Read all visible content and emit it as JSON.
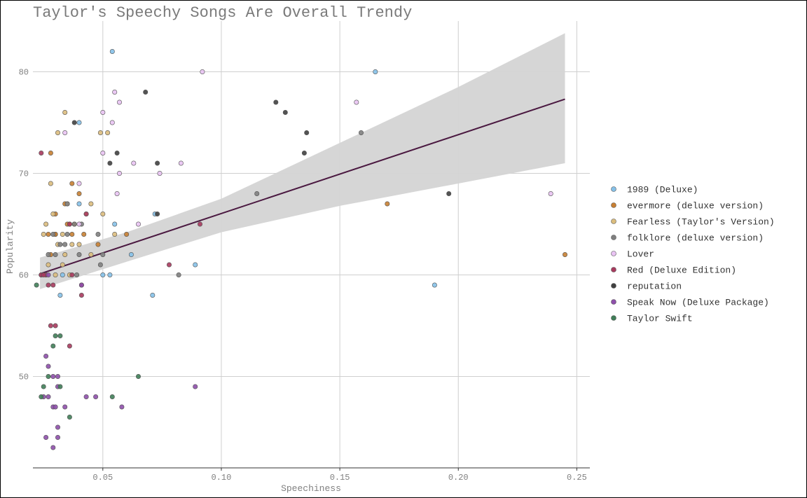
{
  "chart_data": {
    "type": "scatter",
    "title": "Taylor's Speechy Songs Are Overall Trendy",
    "xlabel": "Speechiness",
    "ylabel": "Popularity",
    "xlim": [
      0.0205,
      0.2555
    ],
    "ylim": [
      41,
      85
    ],
    "xticks": [
      0.05,
      0.1,
      0.15,
      0.2,
      0.25
    ],
    "xtick_labels": [
      "0.05",
      "0.10",
      "0.15",
      "0.20",
      "0.25"
    ],
    "yticks": [
      50,
      60,
      70,
      80
    ],
    "ytick_labels": [
      "50",
      "60",
      "70",
      "80"
    ],
    "grid": true,
    "legend_position": "right",
    "trend": {
      "line": [
        [
          0.0235,
          60.1
        ],
        [
          0.245,
          77.3
        ]
      ],
      "band_upper": [
        [
          0.0235,
          61.7
        ],
        [
          0.06,
          64.2
        ],
        [
          0.1,
          67.5
        ],
        [
          0.15,
          73.0
        ],
        [
          0.2,
          78.5
        ],
        [
          0.245,
          83.8
        ]
      ],
      "band_lower": [
        [
          0.0235,
          58.6
        ],
        [
          0.06,
          61.3
        ],
        [
          0.1,
          64.2
        ],
        [
          0.15,
          66.8
        ],
        [
          0.2,
          69.0
        ],
        [
          0.245,
          71.0
        ]
      ],
      "line_color": "#4a1840",
      "band_color": "#d4d4d4"
    },
    "series": [
      {
        "name": "1989 (Deluxe)",
        "color": "#85c1e9",
        "points": [
          [
            0.054,
            82
          ],
          [
            0.165,
            80
          ],
          [
            0.04,
            75
          ],
          [
            0.072,
            66
          ],
          [
            0.055,
            65
          ],
          [
            0.062,
            62
          ],
          [
            0.089,
            61
          ],
          [
            0.05,
            60
          ],
          [
            0.053,
            60
          ],
          [
            0.19,
            59
          ],
          [
            0.071,
            58
          ],
          [
            0.032,
            58
          ],
          [
            0.033,
            60
          ],
          [
            0.04,
            67
          ]
        ]
      },
      {
        "name": "evermore (deluxe version)",
        "color": "#c87f32",
        "points": [
          [
            0.028,
            72
          ],
          [
            0.037,
            69
          ],
          [
            0.04,
            68
          ],
          [
            0.034,
            67
          ],
          [
            0.03,
            66
          ],
          [
            0.035,
            65
          ],
          [
            0.036,
            65
          ],
          [
            0.027,
            64
          ],
          [
            0.03,
            64
          ],
          [
            0.037,
            64
          ],
          [
            0.042,
            64
          ],
          [
            0.06,
            64
          ],
          [
            0.028,
            62
          ],
          [
            0.048,
            63
          ],
          [
            0.17,
            67
          ],
          [
            0.245,
            62
          ],
          [
            0.03,
            64
          ],
          [
            0.038,
            65
          ]
        ]
      },
      {
        "name": "Fearless (Taylor's Version)",
        "color": "#dbbd7d",
        "points": [
          [
            0.034,
            76
          ],
          [
            0.031,
            74
          ],
          [
            0.049,
            74
          ],
          [
            0.052,
            74
          ],
          [
            0.028,
            69
          ],
          [
            0.035,
            67
          ],
          [
            0.045,
            67
          ],
          [
            0.029,
            66
          ],
          [
            0.043,
            66
          ],
          [
            0.05,
            66
          ],
          [
            0.026,
            65
          ],
          [
            0.025,
            64
          ],
          [
            0.033,
            64
          ],
          [
            0.037,
            63
          ],
          [
            0.04,
            63
          ],
          [
            0.055,
            64
          ],
          [
            0.031,
            63
          ],
          [
            0.034,
            62
          ],
          [
            0.027,
            61
          ],
          [
            0.03,
            60
          ],
          [
            0.036,
            60
          ],
          [
            0.026,
            60
          ],
          [
            0.033,
            61
          ],
          [
            0.045,
            62
          ]
        ]
      },
      {
        "name": "folklore (deluxe version)",
        "color": "#7f7f7f",
        "points": [
          [
            0.159,
            74
          ],
          [
            0.115,
            68
          ],
          [
            0.082,
            60
          ],
          [
            0.035,
            67
          ],
          [
            0.038,
            65
          ],
          [
            0.041,
            65
          ],
          [
            0.032,
            63
          ],
          [
            0.034,
            63
          ],
          [
            0.048,
            64
          ],
          [
            0.027,
            62
          ],
          [
            0.03,
            62
          ],
          [
            0.04,
            62
          ],
          [
            0.05,
            62
          ],
          [
            0.049,
            61
          ],
          [
            0.039,
            60
          ],
          [
            0.024,
            60
          ],
          [
            0.035,
            64
          ],
          [
            0.029,
            64
          ]
        ]
      },
      {
        "name": "Lover",
        "color": "#e9c3f3",
        "points": [
          [
            0.092,
            80
          ],
          [
            0.055,
            78
          ],
          [
            0.057,
            77
          ],
          [
            0.157,
            77
          ],
          [
            0.05,
            76
          ],
          [
            0.054,
            75
          ],
          [
            0.034,
            74
          ],
          [
            0.05,
            72
          ],
          [
            0.063,
            71
          ],
          [
            0.083,
            71
          ],
          [
            0.057,
            70
          ],
          [
            0.074,
            70
          ],
          [
            0.04,
            69
          ],
          [
            0.056,
            68
          ],
          [
            0.239,
            68
          ],
          [
            0.065,
            65
          ],
          [
            0.04,
            65
          ]
        ]
      },
      {
        "name": "Red (Deluxe Edition)",
        "color": "#a83a5e",
        "points": [
          [
            0.024,
            72
          ],
          [
            0.043,
            66
          ],
          [
            0.091,
            65
          ],
          [
            0.078,
            61
          ],
          [
            0.026,
            60
          ],
          [
            0.024,
            60
          ],
          [
            0.037,
            60
          ],
          [
            0.027,
            59
          ],
          [
            0.029,
            59
          ],
          [
            0.041,
            58
          ],
          [
            0.041,
            59
          ],
          [
            0.028,
            55
          ],
          [
            0.03,
            55
          ],
          [
            0.036,
            53
          ],
          [
            0.036,
            65
          ],
          [
            0.025,
            60
          ]
        ]
      },
      {
        "name": "reputation",
        "color": "#404040",
        "points": [
          [
            0.068,
            78
          ],
          [
            0.123,
            77
          ],
          [
            0.127,
            76
          ],
          [
            0.038,
            75
          ],
          [
            0.136,
            74
          ],
          [
            0.135,
            72
          ],
          [
            0.056,
            72
          ],
          [
            0.053,
            71
          ],
          [
            0.073,
            71
          ],
          [
            0.073,
            66
          ],
          [
            0.196,
            68
          ]
        ]
      },
      {
        "name": "Speak Now (Deluxe Package)",
        "color": "#8e4fab",
        "points": [
          [
            0.026,
            52
          ],
          [
            0.027,
            51
          ],
          [
            0.029,
            50
          ],
          [
            0.031,
            50
          ],
          [
            0.027,
            48
          ],
          [
            0.025,
            48
          ],
          [
            0.034,
            47
          ],
          [
            0.029,
            47
          ],
          [
            0.043,
            48
          ],
          [
            0.047,
            48
          ],
          [
            0.058,
            47
          ],
          [
            0.089,
            49
          ],
          [
            0.031,
            49
          ],
          [
            0.031,
            45
          ],
          [
            0.026,
            44
          ],
          [
            0.031,
            44
          ],
          [
            0.029,
            43
          ],
          [
            0.041,
            59
          ],
          [
            0.027,
            60
          ],
          [
            0.03,
            47
          ]
        ]
      },
      {
        "name": "Taylor Swift",
        "color": "#3f7e58",
        "points": [
          [
            0.022,
            59
          ],
          [
            0.03,
            54
          ],
          [
            0.032,
            54
          ],
          [
            0.029,
            53
          ],
          [
            0.065,
            50
          ],
          [
            0.027,
            50
          ],
          [
            0.025,
            49
          ],
          [
            0.032,
            49
          ],
          [
            0.024,
            48
          ],
          [
            0.054,
            48
          ],
          [
            0.036,
            46
          ]
        ]
      }
    ]
  }
}
